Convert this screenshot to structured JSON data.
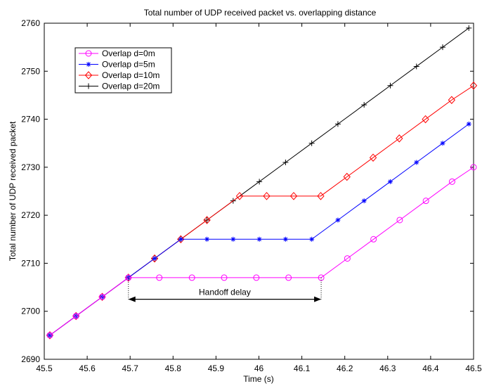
{
  "chart_data": {
    "type": "line",
    "title": "Total number of UDP received packet  vs. overlapping distance",
    "xlabel": "Time (s)",
    "ylabel": "Total number of UDP received packet",
    "xlim": [
      45.5,
      46.5
    ],
    "ylim": [
      2690,
      2760
    ],
    "xticks": [
      "45.5",
      "45.6",
      "45.7",
      "45.8",
      "45.9",
      "46",
      "46.1",
      "46.2",
      "46.3",
      "46.4",
      "46.5"
    ],
    "yticks": [
      "2690",
      "2700",
      "2710",
      "2720",
      "2730",
      "2740",
      "2750",
      "2760"
    ],
    "grid": false,
    "legend_position": "top-left",
    "series": [
      {
        "name": "Overlap d=0m",
        "color": "#ff00ff",
        "marker": "circle",
        "points": [
          [
            45.513,
            2695
          ],
          [
            45.574,
            2699
          ],
          [
            45.635,
            2703
          ],
          [
            45.696,
            2707
          ],
          [
            45.768,
            2707
          ],
          [
            45.844,
            2707
          ],
          [
            45.919,
            2707
          ],
          [
            45.994,
            2707
          ],
          [
            46.069,
            2707
          ],
          [
            46.145,
            2707
          ],
          [
            46.206,
            2711
          ],
          [
            46.267,
            2715
          ],
          [
            46.328,
            2719
          ],
          [
            46.389,
            2723
          ],
          [
            46.45,
            2727
          ],
          [
            46.5,
            2730
          ]
        ]
      },
      {
        "name": "Overlap d=5m",
        "color": "#0000ff",
        "marker": "asterisk",
        "points": [
          [
            45.513,
            2695
          ],
          [
            45.574,
            2699
          ],
          [
            45.635,
            2703
          ],
          [
            45.696,
            2707
          ],
          [
            45.757,
            2711
          ],
          [
            45.818,
            2715
          ],
          [
            45.879,
            2715
          ],
          [
            45.94,
            2715
          ],
          [
            46.001,
            2715
          ],
          [
            46.062,
            2715
          ],
          [
            46.123,
            2715
          ],
          [
            46.184,
            2719
          ],
          [
            46.245,
            2723
          ],
          [
            46.306,
            2727
          ],
          [
            46.367,
            2731
          ],
          [
            46.428,
            2735
          ],
          [
            46.489,
            2739
          ]
        ]
      },
      {
        "name": "Overlap d=10m",
        "color": "#ff0000",
        "marker": "diamond",
        "points": [
          [
            45.513,
            2695
          ],
          [
            45.574,
            2699
          ],
          [
            45.635,
            2703
          ],
          [
            45.696,
            2707
          ],
          [
            45.757,
            2711
          ],
          [
            45.818,
            2715
          ],
          [
            45.879,
            2719
          ],
          [
            45.955,
            2724
          ],
          [
            46.018,
            2724
          ],
          [
            46.081,
            2724
          ],
          [
            46.144,
            2724
          ],
          [
            46.205,
            2728
          ],
          [
            46.266,
            2732
          ],
          [
            46.327,
            2736
          ],
          [
            46.388,
            2740
          ],
          [
            46.449,
            2744
          ],
          [
            46.5,
            2747
          ]
        ]
      },
      {
        "name": "Overlap d=20m",
        "color": "#000000",
        "marker": "plus",
        "points": [
          [
            45.513,
            2695
          ],
          [
            45.574,
            2699
          ],
          [
            45.635,
            2703
          ],
          [
            45.696,
            2707
          ],
          [
            45.757,
            2711
          ],
          [
            45.818,
            2715
          ],
          [
            45.879,
            2719
          ],
          [
            45.94,
            2723
          ],
          [
            46.001,
            2727
          ],
          [
            46.062,
            2731
          ],
          [
            46.123,
            2735
          ],
          [
            46.184,
            2739
          ],
          [
            46.245,
            2743
          ],
          [
            46.306,
            2747
          ],
          [
            46.367,
            2751
          ],
          [
            46.428,
            2755
          ],
          [
            46.489,
            2759
          ]
        ]
      }
    ],
    "annotations": [
      {
        "text": "Handoff delay",
        "x_start": 45.696,
        "x_end": 46.145,
        "y": 2702.5
      }
    ]
  }
}
